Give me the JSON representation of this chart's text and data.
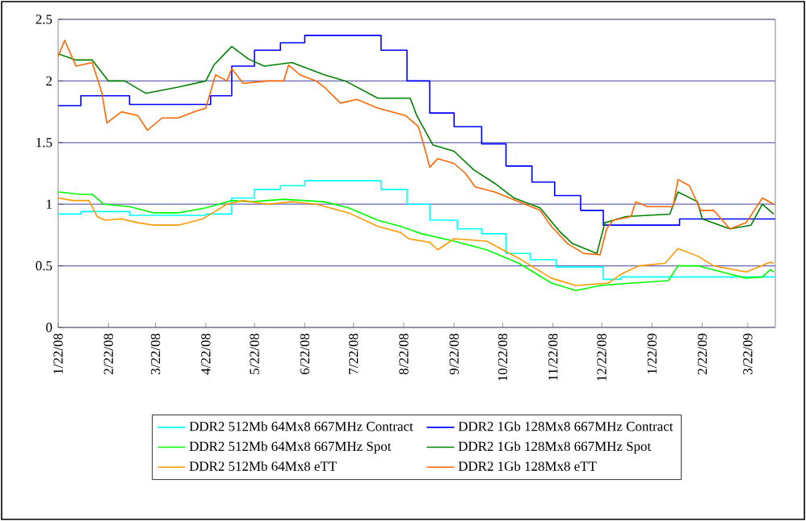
{
  "chart_data": {
    "type": "line",
    "xlim": [
      "2008-01-22",
      "2009-04-08"
    ],
    "xticks": [
      {
        "value": "2008-01-22",
        "label": "1/22/08"
      },
      {
        "value": "2008-02-22",
        "label": "2/22/08"
      },
      {
        "value": "2008-03-22",
        "label": "3/22/08"
      },
      {
        "value": "2008-04-22",
        "label": "4/22/08"
      },
      {
        "value": "2008-05-22",
        "label": "5/22/08"
      },
      {
        "value": "2008-06-22",
        "label": "6/22/08"
      },
      {
        "value": "2008-07-22",
        "label": "7/22/08"
      },
      {
        "value": "2008-08-22",
        "label": "8/22/08"
      },
      {
        "value": "2008-09-22",
        "label": "9/22/08"
      },
      {
        "value": "2008-10-22",
        "label": "10/22/08"
      },
      {
        "value": "2008-11-22",
        "label": "11/22/08"
      },
      {
        "value": "2008-12-22",
        "label": "12/22/08"
      },
      {
        "value": "2009-01-22",
        "label": "1/22/09"
      },
      {
        "value": "2009-02-22",
        "label": "2/22/09"
      },
      {
        "value": "2009-03-22",
        "label": "3/22/09"
      }
    ],
    "ylim": [
      0,
      2.5
    ],
    "yticks": [
      0,
      0.5,
      1,
      1.5,
      2,
      2.5
    ],
    "grid": "y",
    "legend": "bottom",
    "marker": "none",
    "line_style": "solid",
    "series": [
      {
        "name": "DDR2 512Mb 64Mx8 667MHz Contract",
        "color": "#00ffff",
        "type": "step",
        "x": [
          "2008-01-22",
          "2008-02-05",
          "2008-03-06",
          "2008-04-22",
          "2008-05-08",
          "2008-05-22",
          "2008-06-07",
          "2008-06-22",
          "2008-08-08",
          "2008-08-24",
          "2008-09-07",
          "2008-09-24",
          "2008-10-09",
          "2008-10-24",
          "2008-11-08",
          "2008-11-24",
          "2008-12-23",
          "2009-01-03",
          "2009-04-08"
        ],
        "values": [
          0.92,
          0.94,
          0.91,
          0.92,
          1.05,
          1.12,
          1.15,
          1.19,
          1.12,
          1.0,
          0.87,
          0.8,
          0.76,
          0.6,
          0.55,
          0.49,
          0.39,
          0.41,
          0.41
        ]
      },
      {
        "name": "DDR2 1Gb 128Mx8 667MHz Contract",
        "color": "#0000ff",
        "type": "step",
        "x": [
          "2008-01-22",
          "2008-02-05",
          "2008-03-06",
          "2008-04-25",
          "2008-05-08",
          "2008-05-22",
          "2008-06-07",
          "2008-06-22",
          "2008-08-08",
          "2008-08-24",
          "2008-09-07",
          "2008-09-22",
          "2008-10-09",
          "2008-10-24",
          "2008-11-09",
          "2008-11-23",
          "2008-12-09",
          "2008-12-23",
          "2009-02-08",
          "2009-04-08"
        ],
        "values": [
          1.8,
          1.88,
          1.81,
          1.88,
          2.12,
          2.25,
          2.31,
          2.37,
          2.25,
          2.0,
          1.74,
          1.63,
          1.49,
          1.31,
          1.18,
          1.07,
          0.95,
          0.83,
          0.88,
          0.88
        ]
      },
      {
        "name": "DDR2 512Mb 64Mx8 667MHz Spot",
        "color": "#00ff00",
        "x": [
          "2008-01-22",
          "2008-02-05",
          "2008-02-12",
          "2008-02-19",
          "2008-03-06",
          "2008-03-21",
          "2008-04-05",
          "2008-04-22",
          "2008-05-08",
          "2008-05-20",
          "2008-06-09",
          "2008-07-04",
          "2008-07-19",
          "2008-08-06",
          "2008-08-20",
          "2008-09-02",
          "2008-09-22",
          "2008-10-12",
          "2008-11-01",
          "2008-11-21",
          "2008-12-06",
          "2008-12-21",
          "2009-01-09",
          "2009-02-01",
          "2009-02-07",
          "2009-02-19",
          "2009-03-06",
          "2009-03-21",
          "2009-03-31",
          "2009-04-05",
          "2009-04-07"
        ],
        "values": [
          1.1,
          1.08,
          1.08,
          1.0,
          0.98,
          0.93,
          0.93,
          0.97,
          1.03,
          1.02,
          1.04,
          1.02,
          0.97,
          0.87,
          0.82,
          0.76,
          0.7,
          0.63,
          0.52,
          0.36,
          0.3,
          0.34,
          0.36,
          0.38,
          0.5,
          0.5,
          0.45,
          0.4,
          0.41,
          0.47,
          0.45
        ]
      },
      {
        "name": "DDR2 1Gb 128Mx8 667MHz Spot",
        "color": "#008000",
        "x": [
          "2008-01-22",
          "2008-02-02",
          "2008-02-12",
          "2008-02-22",
          "2008-03-03",
          "2008-03-16",
          "2008-04-05",
          "2008-04-22",
          "2008-04-27",
          "2008-05-08",
          "2008-05-18",
          "2008-05-28",
          "2008-06-14",
          "2008-07-04",
          "2008-07-17",
          "2008-08-06",
          "2008-08-26",
          "2008-08-30",
          "2008-09-09",
          "2008-09-22",
          "2008-10-04",
          "2008-10-17",
          "2008-10-29",
          "2008-11-14",
          "2008-11-26",
          "2008-12-04",
          "2008-12-19",
          "2008-12-24",
          "2009-01-06",
          "2009-02-02",
          "2009-02-07",
          "2009-02-19",
          "2009-02-22",
          "2009-03-11",
          "2009-03-24",
          "2009-03-31",
          "2009-04-07"
        ],
        "values": [
          2.22,
          2.17,
          2.17,
          2.0,
          2.0,
          1.9,
          1.95,
          2.0,
          2.13,
          2.28,
          2.18,
          2.12,
          2.15,
          2.05,
          2.0,
          1.86,
          1.86,
          1.72,
          1.48,
          1.43,
          1.28,
          1.17,
          1.05,
          0.97,
          0.78,
          0.68,
          0.6,
          0.85,
          0.9,
          0.92,
          1.1,
          1.02,
          0.88,
          0.8,
          0.83,
          1.0,
          0.92
        ]
      },
      {
        "name": "DDR2 512Mb 64Mx8 eTT",
        "color": "#ff9900",
        "x": [
          "2008-01-22",
          "2008-01-31",
          "2008-02-10",
          "2008-02-15",
          "2008-02-20",
          "2008-03-01",
          "2008-03-11",
          "2008-03-21",
          "2008-04-05",
          "2008-04-20",
          "2008-05-05",
          "2008-05-15",
          "2008-05-30",
          "2008-06-14",
          "2008-06-29",
          "2008-07-19",
          "2008-08-06",
          "2008-08-20",
          "2008-08-25",
          "2008-09-07",
          "2008-09-12",
          "2008-09-22",
          "2008-10-12",
          "2008-11-01",
          "2008-11-21",
          "2008-12-06",
          "2008-12-26",
          "2009-01-04",
          "2009-01-14",
          "2009-01-30",
          "2009-02-07",
          "2009-02-19",
          "2009-03-01",
          "2009-03-21",
          "2009-04-05",
          "2009-04-07"
        ],
        "values": [
          1.05,
          1.03,
          1.03,
          0.9,
          0.87,
          0.88,
          0.85,
          0.83,
          0.83,
          0.88,
          1.0,
          1.03,
          1.0,
          1.02,
          1.0,
          0.93,
          0.82,
          0.77,
          0.72,
          0.69,
          0.63,
          0.72,
          0.7,
          0.56,
          0.4,
          0.34,
          0.36,
          0.44,
          0.5,
          0.52,
          0.64,
          0.58,
          0.5,
          0.45,
          0.53,
          0.52
        ]
      },
      {
        "name": "DDR2 1Gb 128Mx8 eTT",
        "color": "#ff6600",
        "x": [
          "2008-01-22",
          "2008-01-26",
          "2008-02-02",
          "2008-02-12",
          "2008-02-18",
          "2008-02-21",
          "2008-03-01",
          "2008-03-11",
          "2008-03-17",
          "2008-03-26",
          "2008-04-05",
          "2008-04-15",
          "2008-04-22",
          "2008-04-28",
          "2008-05-05",
          "2008-05-08",
          "2008-05-15",
          "2008-05-30",
          "2008-06-09",
          "2008-06-12",
          "2008-06-19",
          "2008-06-29",
          "2008-07-04",
          "2008-07-14",
          "2008-07-24",
          "2008-08-06",
          "2008-08-23",
          "2008-08-31",
          "2008-09-04",
          "2008-09-07",
          "2008-09-12",
          "2008-09-22",
          "2008-09-29",
          "2008-10-05",
          "2008-10-17",
          "2008-11-01",
          "2008-11-14",
          "2008-11-21",
          "2008-12-01",
          "2008-12-11",
          "2008-12-21",
          "2008-12-25",
          "2008-12-29",
          "2009-01-09",
          "2009-01-12",
          "2009-01-19",
          "2009-02-04",
          "2009-02-07",
          "2009-02-14",
          "2009-02-21",
          "2009-03-01",
          "2009-03-11",
          "2009-03-21",
          "2009-03-31",
          "2009-04-07"
        ],
        "values": [
          2.2,
          2.33,
          2.12,
          2.15,
          1.9,
          1.66,
          1.75,
          1.72,
          1.6,
          1.7,
          1.7,
          1.75,
          1.78,
          2.05,
          2.0,
          2.1,
          1.98,
          2.0,
          2.0,
          2.13,
          2.05,
          2.0,
          1.95,
          1.82,
          1.85,
          1.78,
          1.72,
          1.63,
          1.45,
          1.3,
          1.37,
          1.33,
          1.25,
          1.14,
          1.1,
          1.02,
          0.95,
          0.82,
          0.68,
          0.6,
          0.59,
          0.8,
          0.87,
          0.9,
          1.02,
          0.98,
          0.98,
          1.2,
          1.15,
          0.95,
          0.95,
          0.8,
          0.85,
          1.05,
          1.0
        ]
      }
    ]
  }
}
